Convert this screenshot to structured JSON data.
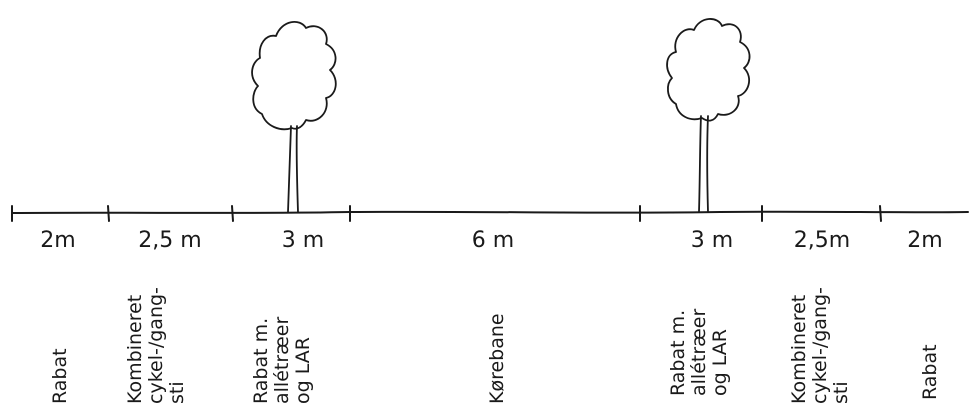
{
  "zones": [
    {
      "width": "2m",
      "lines": [
        "Rabat"
      ]
    },
    {
      "width": "2,5 m",
      "lines": [
        "Kombineret",
        "cykel-/gang-",
        "sti"
      ]
    },
    {
      "width": "3 m",
      "lines": [
        "Rabat m.",
        "allétræer",
        "og LAR"
      ]
    },
    {
      "width": "6 m",
      "lines": [
        "Kørebane"
      ]
    },
    {
      "width": "3 m",
      "lines": [
        "Rabat m.",
        "allétræer",
        "og LAR"
      ]
    },
    {
      "width": "2,5m",
      "lines": [
        "Kombineret",
        "cykel-/gang-",
        "sti"
      ]
    },
    {
      "width": "2m",
      "lines": [
        "Rabat"
      ]
    }
  ],
  "tree_icon": "tree-icon",
  "colors": {
    "ink": "#1a1a1a",
    "background": "#ffffff"
  }
}
